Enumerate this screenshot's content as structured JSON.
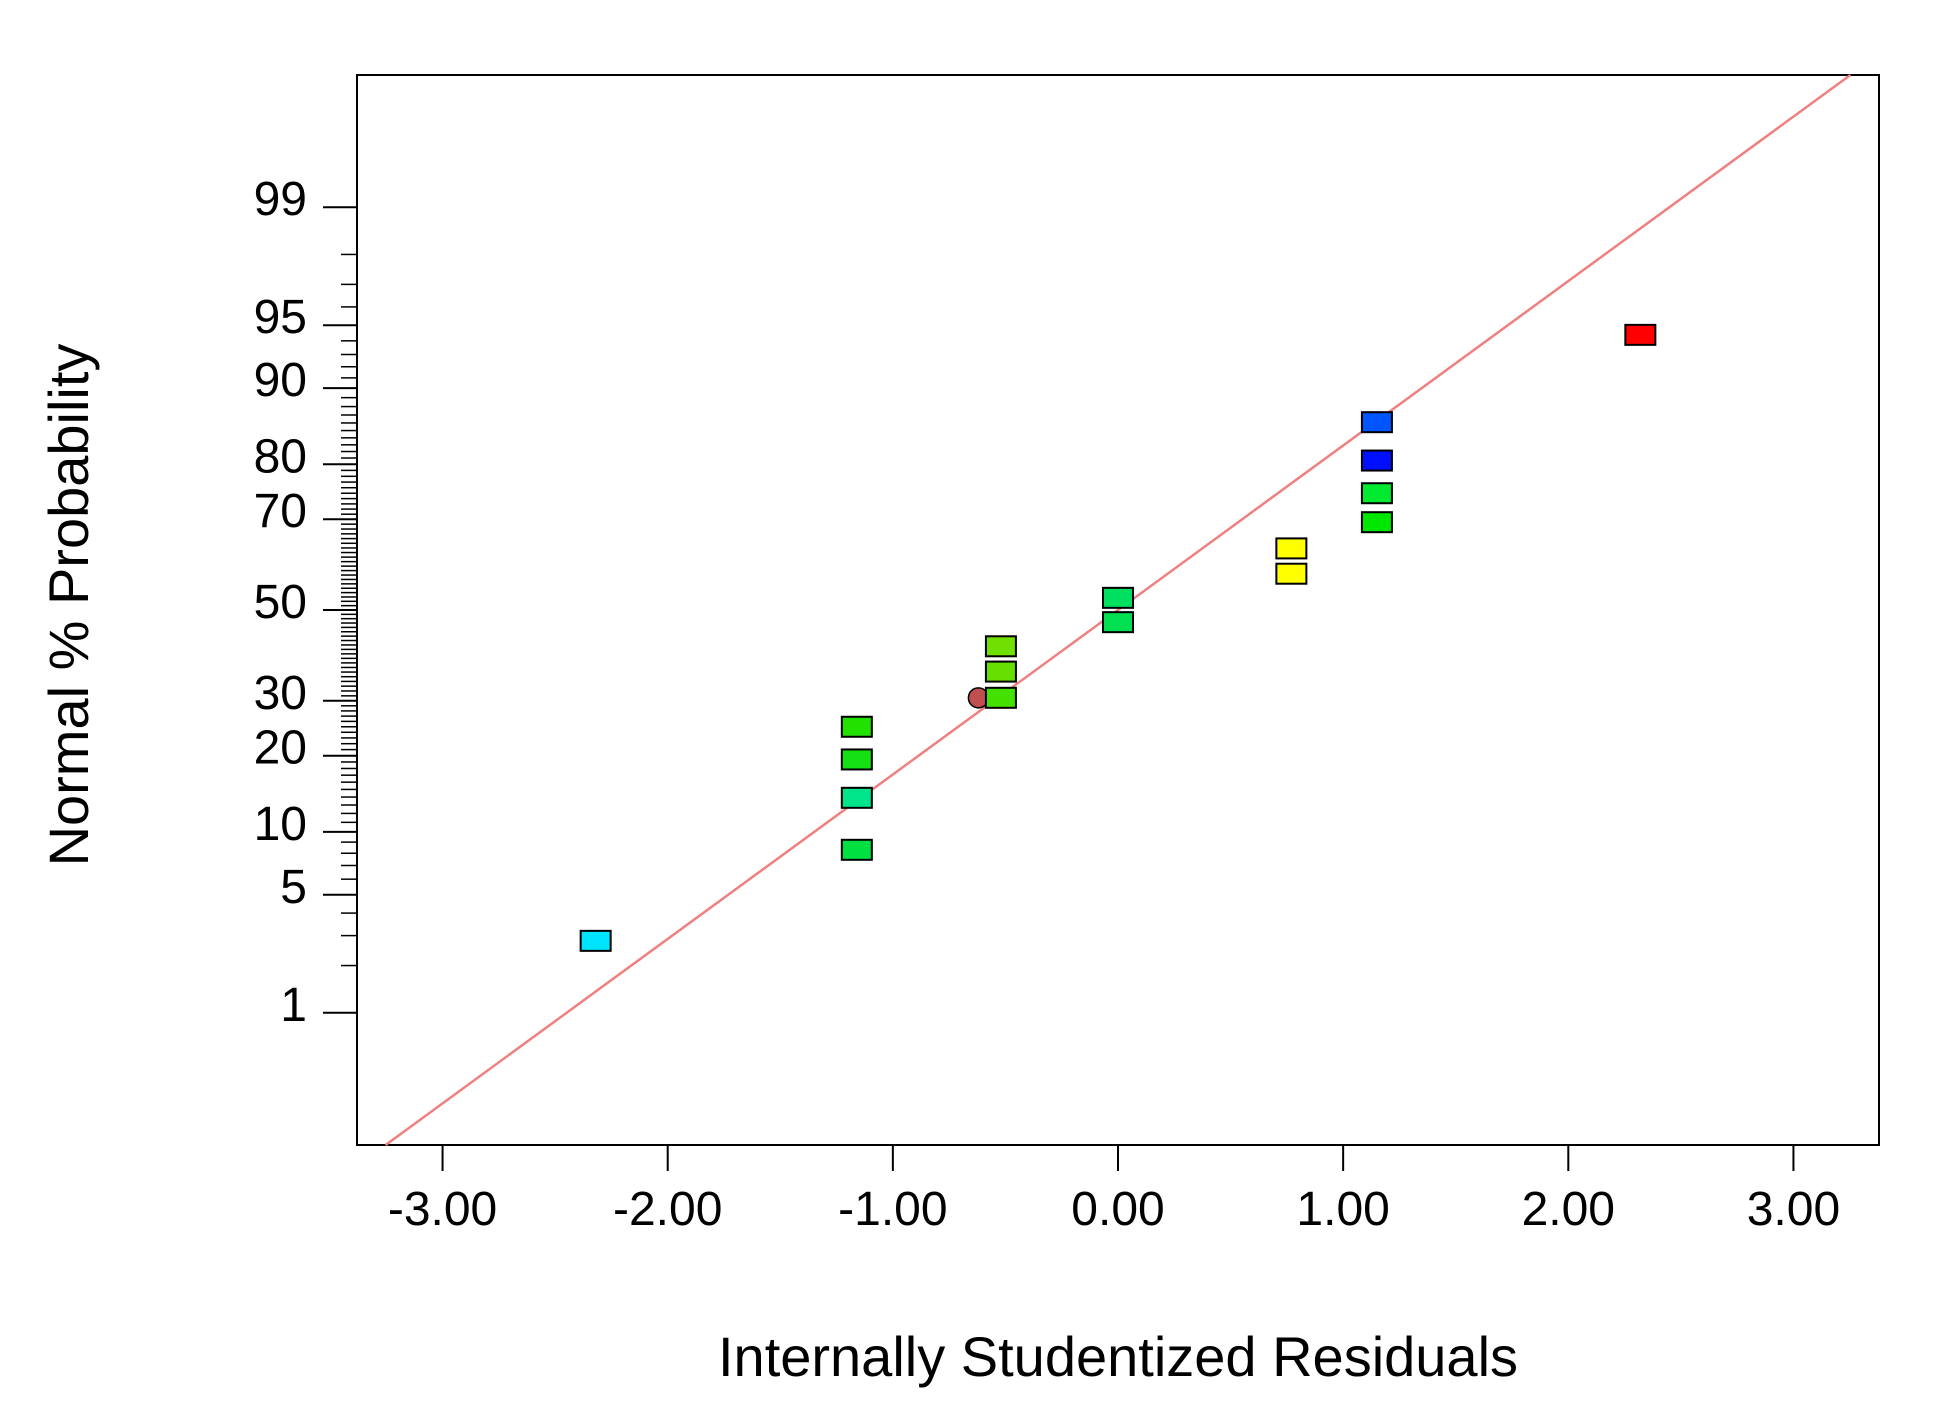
{
  "chart_data": {
    "type": "scatter",
    "title": "",
    "xlabel": "Internally Studentized Residuals",
    "ylabel": "Normal % Probability",
    "xlim": [
      -3.38,
      3.38
    ],
    "ylim_percent": [
      0.1,
      99.9
    ],
    "y_scale": "normal-probability",
    "grid": false,
    "legend": "none",
    "x_ticks": [
      {
        "value": -3,
        "label": "-3.00"
      },
      {
        "value": -2,
        "label": "-2.00"
      },
      {
        "value": -1,
        "label": "-1.00"
      },
      {
        "value": 0,
        "label": "0.00"
      },
      {
        "value": 1,
        "label": "1.00"
      },
      {
        "value": 2,
        "label": "2.00"
      },
      {
        "value": 3,
        "label": "3.00"
      }
    ],
    "y_ticks": [
      {
        "value": 1,
        "label": "1"
      },
      {
        "value": 5,
        "label": "5"
      },
      {
        "value": 10,
        "label": "10"
      },
      {
        "value": 20,
        "label": "20"
      },
      {
        "value": 30,
        "label": "30"
      },
      {
        "value": 50,
        "label": "50"
      },
      {
        "value": 70,
        "label": "70"
      },
      {
        "value": 80,
        "label": "80"
      },
      {
        "value": 90,
        "label": "90"
      },
      {
        "value": 95,
        "label": "95"
      },
      {
        "value": 99,
        "label": "99"
      }
    ],
    "fit_line": {
      "color": "#f08080",
      "x_at_p50": 0.0,
      "slope_z_per_unit": 0.95
    },
    "points": [
      {
        "x": -2.32,
        "y": 2.8,
        "color": "#00e5ff",
        "shape": "square"
      },
      {
        "x": -1.16,
        "y": 8.3,
        "color": "#00e040",
        "shape": "square"
      },
      {
        "x": -1.16,
        "y": 13.9,
        "color": "#00e58a",
        "shape": "square"
      },
      {
        "x": -1.16,
        "y": 19.4,
        "color": "#14e014",
        "shape": "square"
      },
      {
        "x": -1.16,
        "y": 25.0,
        "color": "#22e000",
        "shape": "square"
      },
      {
        "x": -0.62,
        "y": 30.6,
        "color": "#c05050",
        "shape": "circle"
      },
      {
        "x": -0.52,
        "y": 30.6,
        "color": "#44e000",
        "shape": "square"
      },
      {
        "x": -0.52,
        "y": 36.1,
        "color": "#66e000",
        "shape": "square"
      },
      {
        "x": -0.52,
        "y": 41.7,
        "color": "#70e000",
        "shape": "square"
      },
      {
        "x": 0.0,
        "y": 47.2,
        "color": "#00e050",
        "shape": "square"
      },
      {
        "x": 0.0,
        "y": 52.8,
        "color": "#00e060",
        "shape": "square"
      },
      {
        "x": 0.77,
        "y": 58.3,
        "color": "#ffff00",
        "shape": "square"
      },
      {
        "x": 0.77,
        "y": 63.9,
        "color": "#ffff00",
        "shape": "square"
      },
      {
        "x": 1.15,
        "y": 69.4,
        "color": "#00e800",
        "shape": "square"
      },
      {
        "x": 1.15,
        "y": 75.0,
        "color": "#00ea30",
        "shape": "square"
      },
      {
        "x": 1.15,
        "y": 80.6,
        "color": "#0010ff",
        "shape": "square"
      },
      {
        "x": 1.15,
        "y": 86.1,
        "color": "#0055ff",
        "shape": "square"
      },
      {
        "x": 2.32,
        "y": 94.4,
        "color": "#ff0000",
        "shape": "square"
      }
    ]
  }
}
